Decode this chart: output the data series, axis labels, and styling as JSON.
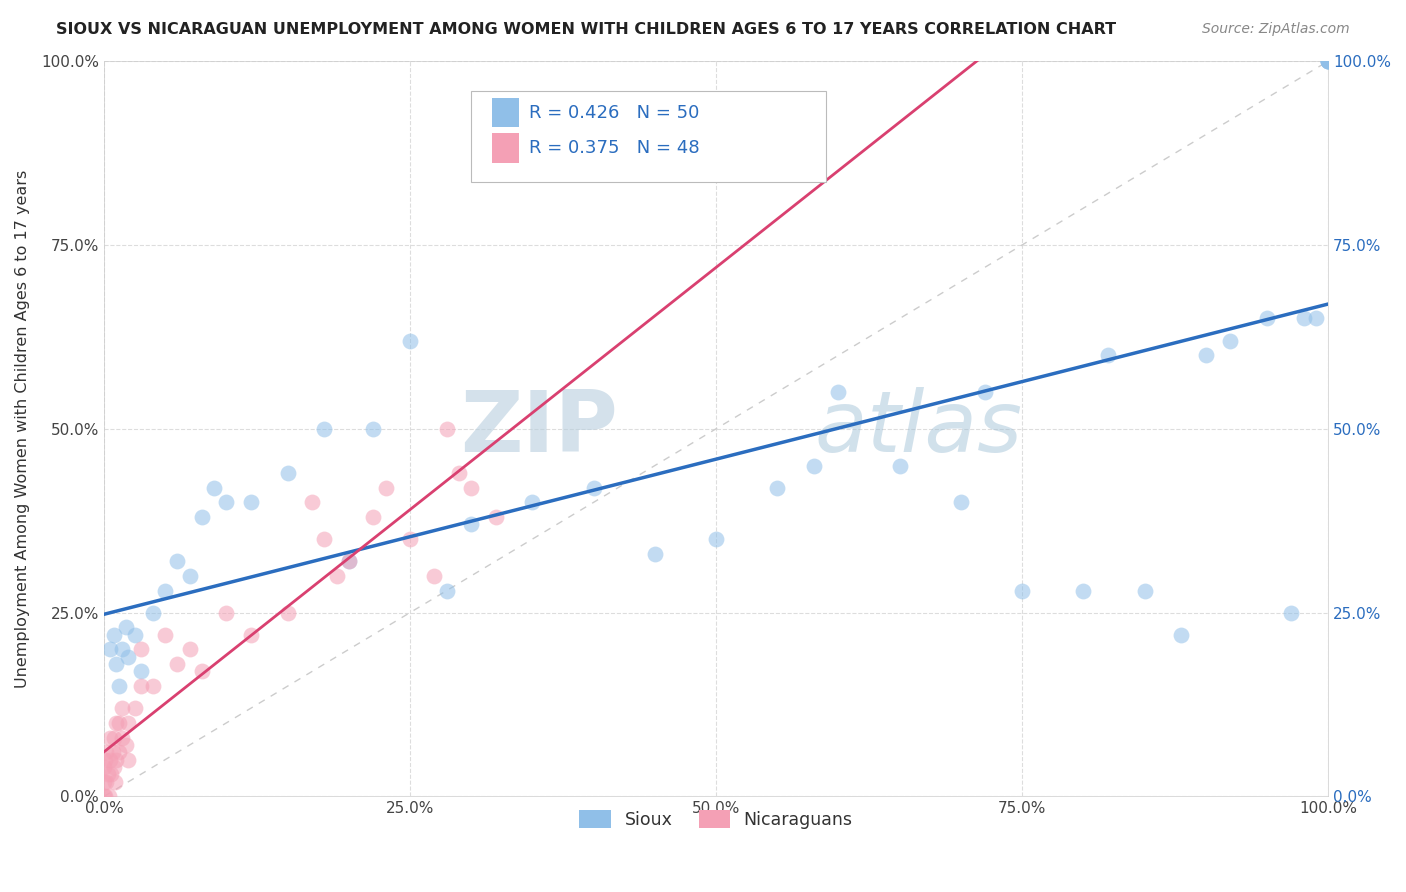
{
  "title": "SIOUX VS NICARAGUAN UNEMPLOYMENT AMONG WOMEN WITH CHILDREN AGES 6 TO 17 YEARS CORRELATION CHART",
  "source": "Source: ZipAtlas.com",
  "ylabel": "Unemployment Among Women with Children Ages 6 to 17 years",
  "legend_sioux": "Sioux",
  "legend_nicaraguan": "Nicaraguans",
  "sioux_color": "#90BFE8",
  "nicaraguan_color": "#F4A0B5",
  "trend_sioux_color": "#2B6DBF",
  "trend_nicaraguan_color": "#D94070",
  "diagonal_color": "#CCCCCC",
  "background_color": "#FFFFFF",
  "grid_color": "#DDDDDD",
  "xlim": [
    0.0,
    1.0
  ],
  "ylim": [
    0.0,
    1.0
  ],
  "xticks": [
    0.0,
    0.25,
    0.5,
    0.75,
    1.0
  ],
  "yticks": [
    0.0,
    0.25,
    0.5,
    0.75,
    1.0
  ],
  "xticklabels": [
    "0.0%",
    "25.0%",
    "50.0%",
    "75.0%",
    "100.0%"
  ],
  "yticklabels_left": [
    "0.0%",
    "25.0%",
    "50.0%",
    "75.0%",
    "100.0%"
  ],
  "yticklabels_right": [
    "0.0%",
    "25.0%",
    "50.0%",
    "75.0%",
    "100.0%"
  ],
  "watermark_zip": "ZIP",
  "watermark_atlas": "atlas",
  "marker_size": 130,
  "marker_alpha": 0.55,
  "sioux_x": [
    0.005,
    0.008,
    0.01,
    0.012,
    0.015,
    0.018,
    0.02,
    0.025,
    0.03,
    0.04,
    0.05,
    0.06,
    0.07,
    0.08,
    0.09,
    0.1,
    0.12,
    0.15,
    0.18,
    0.2,
    0.22,
    0.25,
    0.28,
    0.3,
    0.35,
    0.4,
    0.45,
    0.5,
    0.55,
    0.58,
    0.6,
    0.65,
    0.7,
    0.72,
    0.75,
    0.8,
    0.82,
    0.85,
    0.88,
    0.9,
    0.92,
    0.95,
    0.97,
    0.98,
    0.99,
    1.0,
    1.0,
    1.0,
    1.0,
    1.0
  ],
  "sioux_y": [
    0.2,
    0.22,
    0.18,
    0.15,
    0.2,
    0.23,
    0.19,
    0.22,
    0.17,
    0.25,
    0.28,
    0.32,
    0.3,
    0.38,
    0.42,
    0.4,
    0.4,
    0.44,
    0.5,
    0.32,
    0.5,
    0.62,
    0.28,
    0.37,
    0.4,
    0.42,
    0.33,
    0.35,
    0.42,
    0.45,
    0.55,
    0.45,
    0.4,
    0.55,
    0.28,
    0.28,
    0.6,
    0.28,
    0.22,
    0.6,
    0.62,
    0.65,
    0.25,
    0.65,
    0.65,
    1.0,
    1.0,
    1.0,
    1.0,
    1.0
  ],
  "nicaraguan_x": [
    0.0,
    0.0,
    0.0,
    0.001,
    0.001,
    0.002,
    0.002,
    0.003,
    0.004,
    0.005,
    0.005,
    0.006,
    0.007,
    0.008,
    0.008,
    0.009,
    0.01,
    0.01,
    0.012,
    0.012,
    0.015,
    0.015,
    0.018,
    0.02,
    0.02,
    0.025,
    0.03,
    0.03,
    0.04,
    0.05,
    0.06,
    0.07,
    0.08,
    0.1,
    0.12,
    0.15,
    0.17,
    0.18,
    0.19,
    0.2,
    0.22,
    0.23,
    0.25,
    0.27,
    0.28,
    0.29,
    0.3,
    0.32
  ],
  "nicaraguan_y": [
    0.0,
    0.02,
    0.04,
    0.0,
    0.05,
    0.02,
    0.06,
    0.03,
    0.0,
    0.05,
    0.08,
    0.03,
    0.06,
    0.04,
    0.08,
    0.02,
    0.05,
    0.1,
    0.06,
    0.1,
    0.08,
    0.12,
    0.07,
    0.05,
    0.1,
    0.12,
    0.15,
    0.2,
    0.15,
    0.22,
    0.18,
    0.2,
    0.17,
    0.25,
    0.22,
    0.25,
    0.4,
    0.35,
    0.3,
    0.32,
    0.38,
    0.42,
    0.35,
    0.3,
    0.5,
    0.44,
    0.42,
    0.38
  ]
}
